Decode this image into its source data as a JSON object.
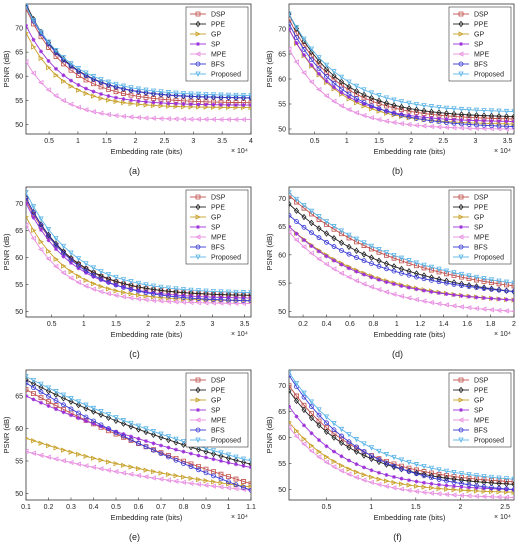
{
  "chart_data": [
    {
      "type": "line",
      "caption": "(a)",
      "xlabel": "Embedding rate (bits)",
      "ylabel": "PSNR (dB)",
      "x_exponent": "× 10⁴",
      "xlim": [
        0.1,
        4
      ],
      "ylim": [
        48,
        75
      ],
      "xticks": [
        0.5,
        1,
        1.5,
        2,
        2.5,
        3,
        3.5,
        4
      ],
      "xtick_labels": [
        "0.5",
        "1",
        "1.5",
        "2",
        "2.5",
        "3",
        "3.5",
        "4"
      ],
      "yticks": [
        50,
        55,
        60,
        65,
        70
      ],
      "ytick_labels": [
        "50",
        "55",
        "60",
        "65",
        "70"
      ],
      "legend_position": "top-right",
      "grid": false,
      "series": [
        {
          "name": "DSP",
          "x0": 0.1,
          "x1": 4.0,
          "y0": 74,
          "y1": 54.5,
          "k": 1.35,
          "color": "#c0504d",
          "marker": "square"
        },
        {
          "name": "PPE",
          "x0": 0.1,
          "x1": 4.0,
          "y0": 75,
          "y1": 55.5,
          "k": 1.35,
          "color": "#222222",
          "marker": "diamond"
        },
        {
          "name": "GP",
          "x0": 0.1,
          "x1": 4.0,
          "y0": 69,
          "y1": 53.5,
          "k": 1.6,
          "color": "#c8a028",
          "marker": "triangle-right"
        },
        {
          "name": "SP",
          "x0": 0.1,
          "x1": 4.0,
          "y0": 70.5,
          "y1": 54,
          "k": 1.5,
          "color": "#9b30d9",
          "marker": "star"
        },
        {
          "name": "MPE",
          "x0": 0.1,
          "x1": 4.0,
          "y0": 63,
          "y1": 51,
          "k": 1.7,
          "color": "#e88fe0",
          "marker": "triangle-left"
        },
        {
          "name": "BFS",
          "x0": 0.1,
          "x1": 4.0,
          "y0": 74.5,
          "y1": 55.5,
          "k": 1.35,
          "color": "#3a3ad6",
          "marker": "circle"
        },
        {
          "name": "Proposed",
          "x0": 0.1,
          "x1": 4.0,
          "y0": 74.5,
          "y1": 56,
          "k": 1.3,
          "color": "#5bb4e8",
          "marker": "triangle-down"
        }
      ]
    },
    {
      "type": "line",
      "caption": "(b)",
      "xlabel": "Embedding rate (bits)",
      "ylabel": "PSNR (dB)",
      "x_exponent": "× 10⁴",
      "xlim": [
        0.1,
        3.6
      ],
      "ylim": [
        49,
        75
      ],
      "xticks": [
        0.5,
        1,
        1.5,
        2,
        2.5,
        3,
        3.5
      ],
      "xtick_labels": [
        "0.5",
        "1",
        "1.5",
        "2",
        "2.5",
        "3",
        "3.5"
      ],
      "yticks": [
        50,
        55,
        60,
        65,
        70
      ],
      "ytick_labels": [
        "50",
        "55",
        "60",
        "65",
        "70"
      ],
      "legend_position": "top-right",
      "grid": false,
      "series": [
        {
          "name": "DSP",
          "x0": 0.1,
          "x1": 3.6,
          "y0": 72,
          "y1": 52,
          "k": 1.3,
          "color": "#c0504d",
          "marker": "square"
        },
        {
          "name": "PPE",
          "x0": 0.1,
          "x1": 3.6,
          "y0": 73,
          "y1": 52.5,
          "k": 1.3,
          "color": "#222222",
          "marker": "diamond"
        },
        {
          "name": "GP",
          "x0": 0.1,
          "x1": 3.6,
          "y0": 70,
          "y1": 51,
          "k": 1.4,
          "color": "#c8a028",
          "marker": "triangle-right"
        },
        {
          "name": "SP",
          "x0": 0.1,
          "x1": 3.6,
          "y0": 70,
          "y1": 51.5,
          "k": 1.4,
          "color": "#9b30d9",
          "marker": "star"
        },
        {
          "name": "MPE",
          "x0": 0.1,
          "x1": 3.6,
          "y0": 66,
          "y1": 50,
          "k": 1.5,
          "color": "#e88fe0",
          "marker": "triangle-left"
        },
        {
          "name": "BFS",
          "x0": 0.1,
          "x1": 3.6,
          "y0": 71,
          "y1": 50.5,
          "k": 1.2,
          "color": "#3a3ad6",
          "marker": "circle"
        },
        {
          "name": "Proposed",
          "x0": 0.1,
          "x1": 3.6,
          "y0": 73,
          "y1": 53.5,
          "k": 1.25,
          "color": "#5bb4e8",
          "marker": "triangle-down"
        }
      ]
    },
    {
      "type": "line",
      "caption": "(c)",
      "xlabel": "Embedding rate (bits)",
      "ylabel": "PSNR (dB)",
      "x_exponent": "× 10⁴",
      "xlim": [
        0.1,
        3.6
      ],
      "ylim": [
        49,
        73
      ],
      "xticks": [
        0.5,
        1,
        1.5,
        2,
        2.5,
        3,
        3.5
      ],
      "xtick_labels": [
        "0.5",
        "1",
        "1.5",
        "2",
        "2.5",
        "3",
        "3.5"
      ],
      "yticks": [
        50,
        55,
        60,
        65,
        70
      ],
      "ytick_labels": [
        "50",
        "55",
        "60",
        "65",
        "70"
      ],
      "legend_position": "top-right",
      "grid": false,
      "series": [
        {
          "name": "DSP",
          "x0": 0.1,
          "x1": 3.6,
          "y0": 70.5,
          "y1": 53,
          "k": 1.35,
          "color": "#c0504d",
          "marker": "square"
        },
        {
          "name": "PPE",
          "x0": 0.1,
          "x1": 3.6,
          "y0": 71,
          "y1": 53,
          "k": 1.35,
          "color": "#222222",
          "marker": "diamond"
        },
        {
          "name": "GP",
          "x0": 0.1,
          "x1": 3.6,
          "y0": 67.5,
          "y1": 52,
          "k": 1.5,
          "color": "#c8a028",
          "marker": "triangle-right"
        },
        {
          "name": "SP",
          "x0": 0.1,
          "x1": 3.6,
          "y0": 70,
          "y1": 52.5,
          "k": 1.4,
          "color": "#9b30d9",
          "marker": "star"
        },
        {
          "name": "MPE",
          "x0": 0.1,
          "x1": 3.6,
          "y0": 66,
          "y1": 51.5,
          "k": 1.6,
          "color": "#e88fe0",
          "marker": "triangle-left"
        },
        {
          "name": "BFS",
          "x0": 0.1,
          "x1": 3.6,
          "y0": 71,
          "y1": 52,
          "k": 1.3,
          "color": "#3a3ad6",
          "marker": "circle"
        },
        {
          "name": "Proposed",
          "x0": 0.1,
          "x1": 3.6,
          "y0": 72,
          "y1": 53.5,
          "k": 1.3,
          "color": "#5bb4e8",
          "marker": "triangle-down"
        }
      ]
    },
    {
      "type": "line",
      "caption": "(d)",
      "xlabel": "Embedding rate (bits)",
      "ylabel": "PSNR (dB)",
      "x_exponent": "× 10⁴",
      "xlim": [
        0.08,
        2.0
      ],
      "ylim": [
        49,
        72
      ],
      "xticks": [
        0.2,
        0.4,
        0.6,
        0.8,
        1,
        1.2,
        1.4,
        1.6,
        1.8,
        2
      ],
      "xtick_labels": [
        "0.2",
        "0.4",
        "0.6",
        "0.8",
        "1",
        "1.2",
        "1.4",
        "1.6",
        "1.8",
        "2"
      ],
      "yticks": [
        50,
        55,
        60,
        65,
        70
      ],
      "ytick_labels": [
        "50",
        "55",
        "60",
        "65",
        "70"
      ],
      "legend_position": "top-right",
      "grid": false,
      "series": [
        {
          "name": "DSP",
          "x0": 0.08,
          "x1": 2.0,
          "y0": 70.5,
          "y1": 54.5,
          "k": 1.0,
          "color": "#c0504d",
          "marker": "square"
        },
        {
          "name": "PPE",
          "x0": 0.08,
          "x1": 2.0,
          "y0": 69,
          "y1": 53.5,
          "k": 1.1,
          "color": "#222222",
          "marker": "diamond"
        },
        {
          "name": "GP",
          "x0": 0.08,
          "x1": 2.0,
          "y0": 65,
          "y1": 52,
          "k": 1.4,
          "color": "#c8a028",
          "marker": "triangle-right"
        },
        {
          "name": "SP",
          "x0": 0.08,
          "x1": 2.0,
          "y0": 65,
          "y1": 52,
          "k": 1.5,
          "color": "#9b30d9",
          "marker": "star"
        },
        {
          "name": "MPE",
          "x0": 0.08,
          "x1": 2.0,
          "y0": 64,
          "y1": 50,
          "k": 1.5,
          "color": "#e88fe0",
          "marker": "triangle-left"
        },
        {
          "name": "BFS",
          "x0": 0.08,
          "x1": 2.0,
          "y0": 67,
          "y1": 53.5,
          "k": 1.2,
          "color": "#3a3ad6",
          "marker": "circle"
        },
        {
          "name": "Proposed",
          "x0": 0.08,
          "x1": 2.0,
          "y0": 71,
          "y1": 55,
          "k": 1.0,
          "color": "#5bb4e8",
          "marker": "triangle-down"
        }
      ]
    },
    {
      "type": "line",
      "caption": "(e)",
      "xlabel": "Embedding rate (bits)",
      "ylabel": "PSNR (dB)",
      "x_exponent": "× 10⁴",
      "xlim": [
        0.1,
        1.1
      ],
      "ylim": [
        49,
        69
      ],
      "xticks": [
        0.1,
        0.2,
        0.3,
        0.4,
        0.5,
        0.6,
        0.7,
        0.8,
        0.9,
        1,
        1.1
      ],
      "xtick_labels": [
        "0.1",
        "0.2",
        "0.3",
        "0.4",
        "0.5",
        "0.6",
        "0.7",
        "0.8",
        "0.9",
        "1",
        "1.1"
      ],
      "yticks": [
        50,
        55,
        60,
        65
      ],
      "ytick_labels": [
        "50",
        "55",
        "60",
        "65"
      ],
      "legend_position": "top-right",
      "grid": false,
      "series": [
        {
          "name": "DSP",
          "x0": 0.1,
          "x1": 1.1,
          "y0": 66,
          "y1": 51.5,
          "k": 0.6,
          "color": "#c0504d",
          "marker": "square"
        },
        {
          "name": "PPE",
          "x0": 0.1,
          "x1": 1.1,
          "y0": 67.5,
          "y1": 54.5,
          "k": 0.7,
          "color": "#222222",
          "marker": "diamond"
        },
        {
          "name": "GP",
          "x0": 0.1,
          "x1": 1.1,
          "y0": 58.5,
          "y1": 51,
          "k": 1.0,
          "color": "#c8a028",
          "marker": "triangle-right"
        },
        {
          "name": "SP",
          "x0": 0.1,
          "x1": 1.1,
          "y0": 65,
          "y1": 54,
          "k": 0.8,
          "color": "#9b30d9",
          "marker": "star"
        },
        {
          "name": "MPE",
          "x0": 0.1,
          "x1": 1.1,
          "y0": 56.5,
          "y1": 50.5,
          "k": 1.0,
          "color": "#e88fe0",
          "marker": "triangle-left"
        },
        {
          "name": "BFS",
          "x0": 0.1,
          "x1": 1.1,
          "y0": 67,
          "y1": 50.5,
          "k": 0.5,
          "color": "#3a3ad6",
          "marker": "circle"
        },
        {
          "name": "Proposed",
          "x0": 0.1,
          "x1": 1.1,
          "y0": 68,
          "y1": 55,
          "k": 0.7,
          "color": "#5bb4e8",
          "marker": "triangle-down"
        }
      ]
    },
    {
      "type": "line",
      "caption": "(f)",
      "xlabel": "Embedding rate (bits)",
      "ylabel": "PSNR (dB)",
      "x_exponent": "× 10⁴",
      "xlim": [
        0.08,
        2.6
      ],
      "ylim": [
        48,
        73
      ],
      "xticks": [
        0.5,
        1,
        1.5,
        2,
        2.5
      ],
      "xtick_labels": [
        "0.5",
        "1",
        "1.5",
        "2",
        "2.5"
      ],
      "yticks": [
        50,
        55,
        60,
        65,
        70
      ],
      "ytick_labels": [
        "50",
        "55",
        "60",
        "65",
        "70"
      ],
      "legend_position": "top-right",
      "grid": false,
      "series": [
        {
          "name": "DSP",
          "x0": 0.08,
          "x1": 2.6,
          "y0": 70,
          "y1": 51.5,
          "k": 1.3,
          "color": "#c0504d",
          "marker": "square"
        },
        {
          "name": "PPE",
          "x0": 0.08,
          "x1": 2.6,
          "y0": 69,
          "y1": 51,
          "k": 1.3,
          "color": "#222222",
          "marker": "diamond"
        },
        {
          "name": "GP",
          "x0": 0.08,
          "x1": 2.6,
          "y0": 63,
          "y1": 49.5,
          "k": 1.6,
          "color": "#c8a028",
          "marker": "triangle-right"
        },
        {
          "name": "SP",
          "x0": 0.08,
          "x1": 2.6,
          "y0": 66,
          "y1": 50,
          "k": 1.5,
          "color": "#9b30d9",
          "marker": "star"
        },
        {
          "name": "MPE",
          "x0": 0.08,
          "x1": 2.6,
          "y0": 62,
          "y1": 48.5,
          "k": 1.6,
          "color": "#e88fe0",
          "marker": "triangle-left"
        },
        {
          "name": "BFS",
          "x0": 0.08,
          "x1": 2.6,
          "y0": 72,
          "y1": 50,
          "k": 1.2,
          "color": "#3a3ad6",
          "marker": "circle"
        },
        {
          "name": "Proposed",
          "x0": 0.08,
          "x1": 2.6,
          "y0": 72.5,
          "y1": 52,
          "k": 1.2,
          "color": "#5bb4e8",
          "marker": "triangle-down"
        }
      ]
    }
  ]
}
